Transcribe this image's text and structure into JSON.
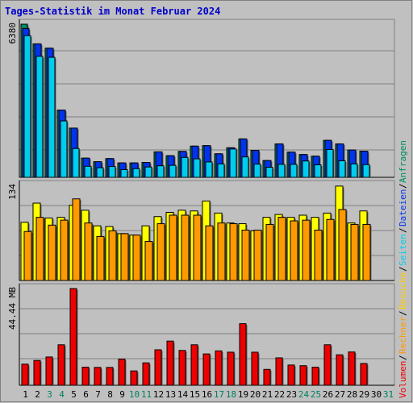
{
  "title": "Tages-Statistik im Monat Februar 2024",
  "colors": {
    "hits": "#008a60",
    "files": "#0033ee",
    "pages": "#00ccee",
    "visits": "#ffff00",
    "sites": "#ff9900",
    "kbytes": "#ee0000",
    "weekend_label": "#008060",
    "label": "#000000"
  },
  "legend_top": [
    {
      "text": "Anfragen",
      "color": "#008a60"
    },
    {
      "text": "/",
      "color": "#000000"
    },
    {
      "text": "Dateien",
      "color": "#0033ee"
    },
    {
      "text": "/",
      "color": "#000000"
    },
    {
      "text": "Seiten",
      "color": "#00ccee"
    },
    {
      "text": "/",
      "color": "#000000"
    },
    {
      "text": "Besuche",
      "color": "#ffcc00"
    },
    {
      "text": "/",
      "color": "#000000"
    },
    {
      "text": "Rechner",
      "color": "#ff9900"
    },
    {
      "text": "/",
      "color": "#000000"
    },
    {
      "text": "Volumen",
      "color": "#ee0000"
    }
  ],
  "chart_data": [
    {
      "type": "bar",
      "panel": "requests",
      "y_max_label": "6380",
      "ylim": [
        0,
        6380
      ],
      "grid": true,
      "categories": [
        "1",
        "2",
        "3",
        "4",
        "5",
        "6",
        "7",
        "8",
        "9",
        "10",
        "11",
        "12",
        "13",
        "14",
        "15",
        "16",
        "17",
        "18",
        "19",
        "20",
        "21",
        "22",
        "23",
        "24",
        "25",
        "26",
        "27",
        "28",
        "29",
        "30",
        "31"
      ],
      "weekend": [
        3,
        4,
        10,
        11,
        17,
        18,
        24,
        25,
        31
      ],
      "series": [
        {
          "key": "hits",
          "values": [
            6380,
            5560,
            5380,
            2800,
            2050,
            800,
            650,
            780,
            600,
            600,
            620,
            1060,
            900,
            1080,
            1300,
            1320,
            980,
            1230,
            1600,
            1120,
            700,
            1390,
            1050,
            950,
            880,
            1540,
            1390,
            1140,
            1090,
            0,
            0
          ]
        },
        {
          "key": "files",
          "values": [
            6200,
            5560,
            5380,
            2800,
            2050,
            800,
            650,
            780,
            600,
            600,
            620,
            1060,
            900,
            1080,
            1300,
            1320,
            980,
            1230,
            1600,
            1120,
            700,
            1390,
            1050,
            950,
            880,
            1540,
            1390,
            1140,
            1090,
            0,
            0
          ]
        },
        {
          "key": "pages",
          "values": [
            5900,
            5040,
            5000,
            2350,
            1200,
            460,
            400,
            450,
            320,
            360,
            430,
            480,
            500,
            830,
            770,
            640,
            560,
            1180,
            850,
            550,
            420,
            540,
            540,
            680,
            520,
            1160,
            690,
            560,
            530,
            0,
            0
          ]
        }
      ]
    },
    {
      "type": "bar",
      "panel": "visits",
      "y_max_label": "134",
      "ylim": [
        0,
        134
      ],
      "grid": true,
      "categories": [
        "1",
        "2",
        "3",
        "4",
        "5",
        "6",
        "7",
        "8",
        "9",
        "10",
        "11",
        "12",
        "13",
        "14",
        "15",
        "16",
        "17",
        "18",
        "19",
        "20",
        "21",
        "22",
        "23",
        "24",
        "25",
        "26",
        "27",
        "28",
        "29",
        "30",
        "31"
      ],
      "series": [
        {
          "key": "visits",
          "values": [
            82,
            109,
            88,
            89,
            106,
            99,
            77,
            76,
            66,
            64,
            77,
            90,
            96,
            99,
            98,
            112,
            95,
            81,
            80,
            70,
            89,
            93,
            89,
            92,
            89,
            95,
            133,
            81,
            98,
            0,
            0
          ]
        },
        {
          "key": "sites",
          "values": [
            69,
            89,
            78,
            85,
            115,
            81,
            62,
            70,
            66,
            64,
            55,
            80,
            92,
            92,
            92,
            77,
            81,
            80,
            71,
            71,
            79,
            89,
            84,
            85,
            71,
            86,
            100,
            79,
            79,
            0,
            0
          ]
        }
      ]
    },
    {
      "type": "bar",
      "panel": "kbytes",
      "y_max_label": "44.44 MB",
      "ylim": [
        0,
        44.44
      ],
      "grid": true,
      "categories": [
        "1",
        "2",
        "3",
        "4",
        "5",
        "6",
        "7",
        "8",
        "9",
        "10",
        "11",
        "12",
        "13",
        "14",
        "15",
        "16",
        "17",
        "18",
        "19",
        "20",
        "21",
        "22",
        "23",
        "24",
        "25",
        "26",
        "27",
        "28",
        "29",
        "30",
        "31"
      ],
      "series": [
        {
          "key": "kbytes",
          "values": [
            9.7,
            11.4,
            13.0,
            18.6,
            44.44,
            8.3,
            8.2,
            8.2,
            12.0,
            6.6,
            10.3,
            16.3,
            20.3,
            16.0,
            18.6,
            14.4,
            15.8,
            15.2,
            28.3,
            15.2,
            7.3,
            12.6,
            9.3,
            9.0,
            8.3,
            18.6,
            14.0,
            15.3,
            10.0,
            0,
            0
          ]
        }
      ]
    }
  ]
}
